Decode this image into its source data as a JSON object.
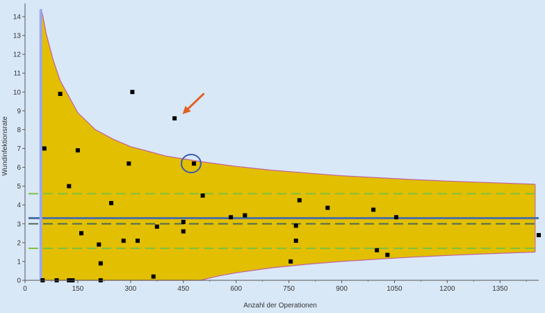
{
  "chart_data": {
    "type": "scatter",
    "title": "",
    "xlabel": "Anzahl der Operationen",
    "ylabel": "Wundinfektionsrate",
    "xlim": [
      0,
      1460
    ],
    "ylim": [
      0,
      14.7
    ],
    "xticks": [
      0,
      150,
      300,
      450,
      600,
      750,
      900,
      1050,
      1200,
      1350
    ],
    "yticks": [
      0,
      1,
      2,
      3,
      4,
      5,
      6,
      7,
      8,
      9,
      10,
      11,
      12,
      13,
      14
    ],
    "grid": false,
    "legend": "none",
    "colors": {
      "background": "#d9e8f7",
      "funnel_fill": "#e2bf00",
      "funnel_border": "#c060a0",
      "mean_line": "#4a6fa5",
      "target_line": "#4d6a58",
      "limit_lines": "#7fc040",
      "vertical_marker": "#9aa8e8",
      "points": "#000000",
      "arrow": "#e06020",
      "circle": "#3a5ab0"
    },
    "funnel": {
      "upper": [
        [
          45,
          14.4
        ],
        [
          50,
          14.1
        ],
        [
          60,
          13.1
        ],
        [
          80,
          11.7
        ],
        [
          100,
          10.6
        ],
        [
          150,
          8.9
        ],
        [
          200,
          8.0
        ],
        [
          250,
          7.5
        ],
        [
          300,
          7.1
        ],
        [
          350,
          6.85
        ],
        [
          400,
          6.6
        ],
        [
          450,
          6.45
        ],
        [
          500,
          6.3
        ],
        [
          600,
          6.05
        ],
        [
          700,
          5.85
        ],
        [
          800,
          5.7
        ],
        [
          900,
          5.55
        ],
        [
          1000,
          5.45
        ],
        [
          1100,
          5.35
        ],
        [
          1200,
          5.27
        ],
        [
          1300,
          5.2
        ],
        [
          1450,
          5.1
        ]
      ],
      "lower": [
        [
          45,
          0
        ],
        [
          500,
          0
        ],
        [
          520,
          0.1
        ],
        [
          550,
          0.23
        ],
        [
          600,
          0.4
        ],
        [
          700,
          0.66
        ],
        [
          800,
          0.85
        ],
        [
          900,
          1.0
        ],
        [
          1000,
          1.12
        ],
        [
          1100,
          1.23
        ],
        [
          1200,
          1.32
        ],
        [
          1300,
          1.4
        ],
        [
          1450,
          1.5
        ]
      ]
    },
    "reference_lines": {
      "mean": 3.3,
      "target": 3.0,
      "upper_limit": 4.6,
      "lower_limit": 1.7,
      "vertical_x": 45
    },
    "series": [
      {
        "x": [
          50,
          55,
          90,
          100,
          125,
          125,
          135,
          150,
          160,
          210,
          215,
          215,
          245,
          280,
          295,
          305,
          320,
          365,
          375,
          425,
          450,
          450,
          480,
          505,
          585,
          625,
          755,
          770,
          770,
          780,
          860,
          990,
          1000,
          1030,
          1055,
          1460
        ],
        "y": [
          0,
          7.0,
          0,
          9.9,
          5.0,
          0,
          0,
          6.9,
          2.5,
          1.9,
          0.9,
          0,
          4.1,
          2.1,
          6.2,
          10.0,
          2.1,
          0.2,
          2.85,
          8.6,
          3.1,
          2.6,
          6.2,
          4.5,
          3.35,
          3.45,
          1.0,
          2.9,
          2.1,
          4.25,
          3.85,
          3.75,
          1.6,
          1.35,
          3.35,
          2.4
        ]
      }
    ],
    "annotations": {
      "arrow_target": [
        430,
        8.6
      ],
      "circle_center": [
        480,
        6.2
      ]
    }
  }
}
